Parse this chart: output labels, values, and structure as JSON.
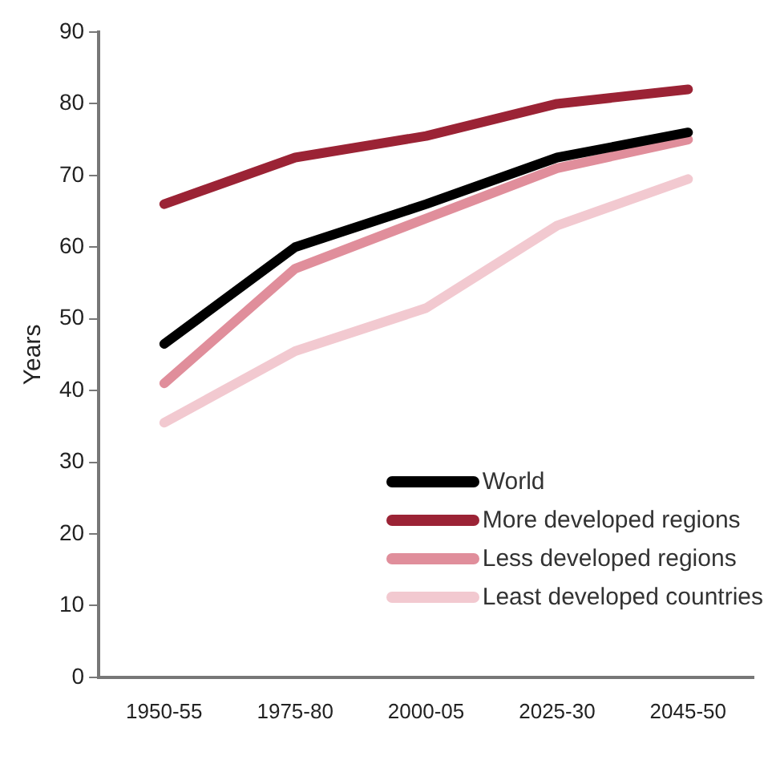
{
  "chart_data": {
    "type": "line",
    "ylabel": "Years",
    "categories": [
      "1950-55",
      "1975-80",
      "2000-05",
      "2025-30",
      "2045-50"
    ],
    "series": [
      {
        "name": "World",
        "color": "#000000",
        "values": [
          46.5,
          60,
          66,
          72.5,
          76
        ]
      },
      {
        "name": "More developed regions",
        "color": "#9b2335",
        "values": [
          66,
          72.5,
          75.5,
          80,
          82
        ]
      },
      {
        "name": "Less developed regions",
        "color": "#e08e9b",
        "values": [
          41,
          57,
          64,
          71,
          75
        ]
      },
      {
        "name": "Least developed countries",
        "color": "#f2c9d0",
        "values": [
          35.5,
          45.5,
          51.5,
          63,
          69.5
        ]
      }
    ],
    "ylim": [
      0,
      90
    ],
    "yticks": [
      0,
      10,
      20,
      30,
      40,
      50,
      60,
      70,
      80,
      90
    ],
    "grid": false,
    "legend": "bottom right",
    "marker": "none",
    "line_style": "solid"
  }
}
